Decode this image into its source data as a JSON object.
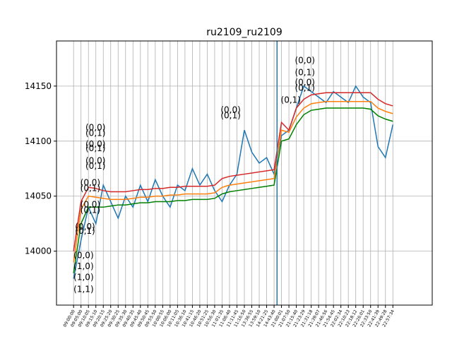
{
  "chart_data": {
    "type": "line",
    "title": "ru2109_ru2109",
    "x": [
      0,
      1,
      2,
      3,
      4,
      5,
      6,
      7,
      8,
      9,
      10,
      11,
      12,
      13,
      14,
      15,
      16,
      17,
      18,
      19,
      20,
      21,
      22,
      23,
      24,
      25,
      26,
      27,
      28,
      29,
      30,
      31,
      32,
      33,
      34,
      35,
      36,
      37,
      38,
      39,
      40,
      41,
      42,
      43
    ],
    "series": [
      {
        "color": "#1f77b4",
        "values": [
          13975,
          14010,
          14040,
          14025,
          14060,
          14045,
          14030,
          14050,
          14040,
          14060,
          14045,
          14065,
          14050,
          14040,
          14060,
          14055,
          14075,
          14060,
          14070,
          14055,
          14045,
          14060,
          14070,
          14110,
          14090,
          14080,
          14085,
          14070,
          14105,
          14110,
          14130,
          14150,
          14145,
          14140,
          14135,
          14145,
          14140,
          14135,
          14150,
          14140,
          14135,
          14095,
          14085,
          14115
        ]
      },
      {
        "color": "#d62728",
        "values": [
          14000,
          14045,
          14058,
          14057,
          14055,
          14054,
          14054,
          14054,
          14055,
          14056,
          14056,
          14057,
          14057,
          14058,
          14058,
          14059,
          14059,
          14059,
          14059,
          14060,
          14066,
          14068,
          14069,
          14070,
          14071,
          14072,
          14073,
          14074,
          14117,
          14110,
          14130,
          14138,
          14142,
          14143,
          14144,
          14144,
          14144,
          14144,
          14144,
          14144,
          14144,
          14138,
          14134,
          14132
        ]
      },
      {
        "color": "#ff7f0e",
        "values": [
          13990,
          14038,
          14050,
          14049,
          14048,
          14047,
          14047,
          14047,
          14048,
          14049,
          14049,
          14050,
          14050,
          14051,
          14051,
          14052,
          14052,
          14052,
          14052,
          14053,
          14058,
          14060,
          14061,
          14062,
          14063,
          14064,
          14065,
          14066,
          14110,
          14108,
          14122,
          14130,
          14134,
          14135,
          14136,
          14136,
          14136,
          14136,
          14136,
          14136,
          14136,
          14130,
          14127,
          14125
        ]
      },
      {
        "color": "#008000",
        "values": [
          13980,
          14025,
          14040,
          14040,
          14040,
          14041,
          14042,
          14042,
          14043,
          14044,
          14044,
          14045,
          14045,
          14045,
          14046,
          14046,
          14047,
          14047,
          14047,
          14048,
          14052,
          14054,
          14055,
          14056,
          14057,
          14058,
          14059,
          14060,
          14100,
          14102,
          14115,
          14124,
          14128,
          14129,
          14130,
          14130,
          14130,
          14130,
          14130,
          14130,
          14129,
          14123,
          14120,
          14118
        ]
      }
    ],
    "vline": {
      "x": 27.4,
      "color": "#1f77b4"
    },
    "xlim": [
      -2.3,
      48.3
    ],
    "ylim": [
      13951,
      14191
    ],
    "yticks": [
      14000,
      14050,
      14100,
      14150
    ],
    "xticks": [
      {
        "value": 0,
        "label": "09:00:00"
      },
      {
        "value": 1,
        "label": "09:05:00"
      },
      {
        "value": 2,
        "label": "09:10:05"
      },
      {
        "value": 3,
        "label": "09:15:10"
      },
      {
        "value": 4,
        "label": "09:20:15"
      },
      {
        "value": 5,
        "label": "09:25:20"
      },
      {
        "value": 6,
        "label": "09:30:25"
      },
      {
        "value": 7,
        "label": "09:35:30"
      },
      {
        "value": 8,
        "label": "09:40:35"
      },
      {
        "value": 9,
        "label": "09:45:40"
      },
      {
        "value": 10,
        "label": "09:50:45"
      },
      {
        "value": 11,
        "label": "09:55:50"
      },
      {
        "value": 12,
        "label": "10:00:55"
      },
      {
        "value": 13,
        "label": "10:06:00"
      },
      {
        "value": 14,
        "label": "10:11:05"
      },
      {
        "value": 15,
        "label": "10:36:10"
      },
      {
        "value": 16,
        "label": "10:41:15"
      },
      {
        "value": 17,
        "label": "10:46:20"
      },
      {
        "value": 18,
        "label": "10:51:25"
      },
      {
        "value": 19,
        "label": "10:56:30"
      },
      {
        "value": 20,
        "label": "11:01:35"
      },
      {
        "value": 21,
        "label": "11:06:40"
      },
      {
        "value": 22,
        "label": "11:11:45"
      },
      {
        "value": 23,
        "label": "11:16:50"
      },
      {
        "value": 24,
        "label": "13:36:55"
      },
      {
        "value": 25,
        "label": "13:59:10"
      },
      {
        "value": 26,
        "label": "14:21:25"
      },
      {
        "value": 27,
        "label": "14:43:40"
      },
      {
        "value": 28,
        "label": "21:00:01"
      },
      {
        "value": 29,
        "label": "21:07:50"
      },
      {
        "value": 30,
        "label": "21:15:40"
      },
      {
        "value": 31,
        "label": "21:23:29"
      },
      {
        "value": 32,
        "label": "21:31:18"
      },
      {
        "value": 33,
        "label": "21:39:07"
      },
      {
        "value": 34,
        "label": "21:46:56"
      },
      {
        "value": 35,
        "label": "21:54:45"
      },
      {
        "value": 36,
        "label": "22:02:34"
      },
      {
        "value": 37,
        "label": "22:10:23"
      },
      {
        "value": 38,
        "label": "22:18:12"
      },
      {
        "value": 39,
        "label": "22:26:01"
      },
      {
        "value": 40,
        "label": "22:33:50"
      },
      {
        "value": 41,
        "label": "22:41:39"
      },
      {
        "value": 42,
        "label": "22:49:28"
      },
      {
        "value": 43,
        "label": "22:57:34"
      }
    ],
    "grid": true,
    "annotations": [
      {
        "label": "(0,0)",
        "x": 0,
        "y": 13997
      },
      {
        "label": "(1,0)",
        "x": 0,
        "y": 13987
      },
      {
        "label": "(1,0)",
        "x": 0,
        "y": 13977
      },
      {
        "label": "(1,1)",
        "x": 0,
        "y": 13966
      },
      {
        "label": "(0,0)",
        "x": 0.2,
        "y": 14023
      },
      {
        "label": "(0,1)",
        "x": 0.2,
        "y": 14019
      },
      {
        "label": "(0,0)",
        "x": 0.9,
        "y": 14063
      },
      {
        "label": "(0,1)",
        "x": 0.9,
        "y": 14058
      },
      {
        "label": "(0,0)",
        "x": 0.9,
        "y": 14043
      },
      {
        "label": "(0,1)",
        "x": 0.9,
        "y": 14038
      },
      {
        "label": "(0,0)",
        "x": 1.6,
        "y": 14113
      },
      {
        "label": "(0,1)",
        "x": 1.6,
        "y": 14108
      },
      {
        "label": "(0,0)",
        "x": 1.6,
        "y": 14098
      },
      {
        "label": "(0,1)",
        "x": 1.6,
        "y": 14094
      },
      {
        "label": "(0,0)",
        "x": 1.6,
        "y": 14083
      },
      {
        "label": "(0,1)",
        "x": 1.6,
        "y": 14078
      },
      {
        "label": "(0,0)",
        "x": 19.8,
        "y": 14129
      },
      {
        "label": "(0,1)",
        "x": 19.8,
        "y": 14124
      },
      {
        "label": "(0,1)",
        "x": 27.9,
        "y": 14138
      },
      {
        "label": "(0,0)",
        "x": 29.8,
        "y": 14174
      },
      {
        "label": "(0,1)",
        "x": 29.8,
        "y": 14163
      },
      {
        "label": "(0,0)",
        "x": 29.8,
        "y": 14154
      },
      {
        "label": "(0,1)",
        "x": 29.8,
        "y": 14149
      }
    ]
  }
}
